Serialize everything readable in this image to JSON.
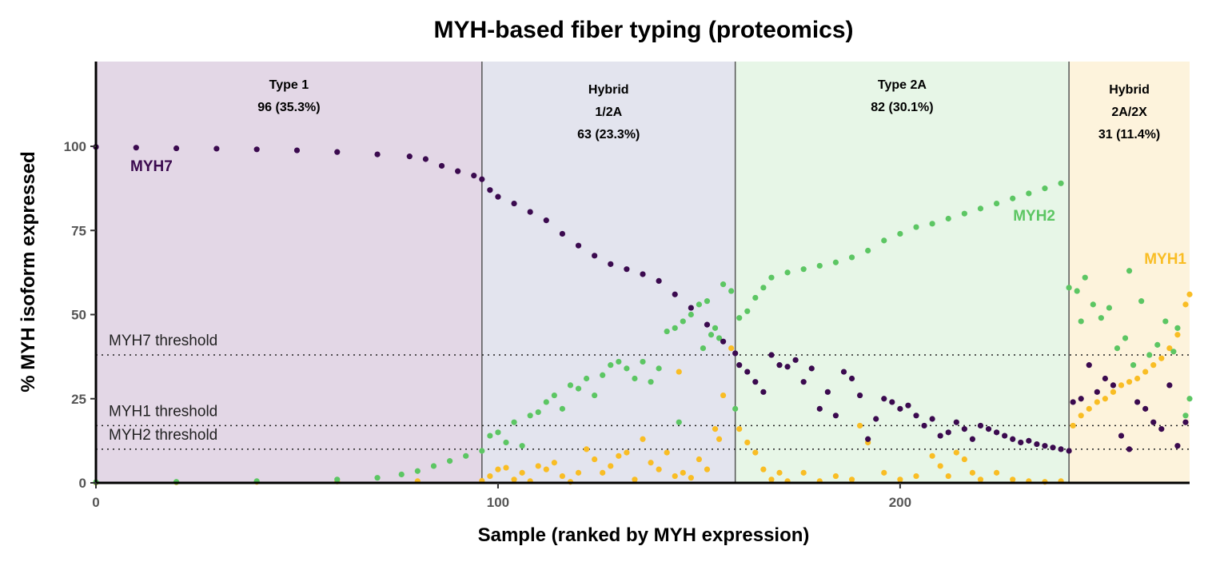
{
  "chart_data": {
    "type": "scatter",
    "title": "MYH-based fiber typing (proteomics)",
    "xlabel": "Sample (ranked by MYH expression)",
    "ylabel": "% MYH isoform expressed",
    "xlim": [
      0,
      272
    ],
    "ylim": [
      0,
      100
    ],
    "x_ticks": [
      "0",
      "100",
      "200"
    ],
    "y_ticks": [
      "0",
      "25",
      "50",
      "75",
      "100"
    ],
    "regions": [
      {
        "lines": [
          "Type 1",
          "96 (35.3%)"
        ],
        "x_start": 0,
        "x_end": 96,
        "color": "#e3d7e6"
      },
      {
        "lines": [
          "Hybrid",
          "1/2A",
          "63 (23.3%)"
        ],
        "x_start": 96,
        "x_end": 159,
        "color": "#e3e4ee"
      },
      {
        "lines": [
          "Type 2A",
          "82 (30.1%)"
        ],
        "x_start": 159,
        "x_end": 242,
        "color": "#e7f6e7"
      },
      {
        "lines": [
          "Hybrid",
          "2A/2X",
          "31 (11.4%)"
        ],
        "x_start": 242,
        "x_end": 272,
        "color": "#fdf3dc"
      }
    ],
    "thresholds": [
      {
        "label": "MYH7 threshold",
        "y": 38
      },
      {
        "label": "MYH1 threshold",
        "y": 17
      },
      {
        "label": "MYH2 threshold",
        "y": 10
      }
    ],
    "series": [
      {
        "name": "MYH7",
        "color": "#3b0a4f"
      },
      {
        "name": "MYH2",
        "color": "#5cc663"
      },
      {
        "name": "MYH1",
        "color": "#f9bd24"
      }
    ],
    "series_points": {
      "MYH7": [
        [
          0,
          99.8
        ],
        [
          10,
          99.6
        ],
        [
          20,
          99.4
        ],
        [
          30,
          99.3
        ],
        [
          40,
          99.1
        ],
        [
          50,
          98.8
        ],
        [
          60,
          98.3
        ],
        [
          70,
          97.6
        ],
        [
          78,
          97.0
        ],
        [
          82,
          96.2
        ],
        [
          86,
          94.2
        ],
        [
          90,
          92.6
        ],
        [
          94,
          91.3
        ],
        [
          96,
          90.2
        ],
        [
          98,
          87.0
        ],
        [
          100,
          85.0
        ],
        [
          104,
          83.0
        ],
        [
          108,
          80.5
        ],
        [
          112,
          78.0
        ],
        [
          116,
          74.0
        ],
        [
          120,
          70.5
        ],
        [
          124,
          67.5
        ],
        [
          128,
          65.0
        ],
        [
          132,
          63.5
        ],
        [
          136,
          62.0
        ],
        [
          140,
          60.0
        ],
        [
          144,
          56.0
        ],
        [
          148,
          52.0
        ],
        [
          152,
          47.0
        ],
        [
          156,
          42.0
        ],
        [
          159,
          38.5
        ],
        [
          160,
          35.0
        ],
        [
          162,
          33.0
        ],
        [
          164,
          30.0
        ],
        [
          166,
          27.0
        ],
        [
          168,
          38.0
        ],
        [
          170,
          35.0
        ],
        [
          172,
          34.5
        ],
        [
          174,
          36.5
        ],
        [
          176,
          30.0
        ],
        [
          178,
          34.0
        ],
        [
          180,
          22.0
        ],
        [
          182,
          27.0
        ],
        [
          184,
          20.0
        ],
        [
          186,
          33.0
        ],
        [
          188,
          31.0
        ],
        [
          190,
          26.0
        ],
        [
          192,
          13.0
        ],
        [
          194,
          19.0
        ],
        [
          196,
          25.0
        ],
        [
          198,
          24.0
        ],
        [
          200,
          22.0
        ],
        [
          202,
          23.0
        ],
        [
          204,
          20.0
        ],
        [
          206,
          17.0
        ],
        [
          208,
          19.0
        ],
        [
          210,
          14.0
        ],
        [
          212,
          15.0
        ],
        [
          214,
          18.0
        ],
        [
          216,
          16.0
        ],
        [
          218,
          13.0
        ],
        [
          220,
          17.0
        ],
        [
          222,
          16.0
        ],
        [
          224,
          15.0
        ],
        [
          226,
          14.0
        ],
        [
          228,
          13.0
        ],
        [
          230,
          12.0
        ],
        [
          232,
          12.5
        ],
        [
          234,
          11.5
        ],
        [
          236,
          11.0
        ],
        [
          238,
          10.5
        ],
        [
          240,
          10.0
        ],
        [
          242,
          9.5
        ],
        [
          243,
          24.0
        ],
        [
          245,
          25.0
        ],
        [
          247,
          35.0
        ],
        [
          249,
          27.0
        ],
        [
          251,
          31.0
        ],
        [
          253,
          29.0
        ],
        [
          255,
          14.0
        ],
        [
          257,
          10.0
        ],
        [
          259,
          24.0
        ],
        [
          261,
          22.0
        ],
        [
          263,
          18.0
        ],
        [
          265,
          16.0
        ],
        [
          267,
          29.0
        ],
        [
          269,
          11.0
        ],
        [
          271,
          18.0
        ]
      ],
      "MYH2": [
        [
          0,
          0.2
        ],
        [
          20,
          0.3
        ],
        [
          40,
          0.5
        ],
        [
          60,
          1.0
        ],
        [
          70,
          1.5
        ],
        [
          76,
          2.5
        ],
        [
          80,
          3.5
        ],
        [
          84,
          5.0
        ],
        [
          88,
          6.5
        ],
        [
          92,
          8.0
        ],
        [
          96,
          9.5
        ],
        [
          98,
          14.0
        ],
        [
          100,
          15.0
        ],
        [
          102,
          12.0
        ],
        [
          104,
          18.0
        ],
        [
          106,
          11.0
        ],
        [
          108,
          20.0
        ],
        [
          110,
          21.0
        ],
        [
          112,
          24.0
        ],
        [
          114,
          26.0
        ],
        [
          116,
          22.0
        ],
        [
          118,
          29.0
        ],
        [
          120,
          28.0
        ],
        [
          122,
          31.0
        ],
        [
          124,
          26.0
        ],
        [
          126,
          32.0
        ],
        [
          128,
          35.0
        ],
        [
          130,
          36.0
        ],
        [
          132,
          34.0
        ],
        [
          134,
          31.0
        ],
        [
          136,
          36.0
        ],
        [
          138,
          30.0
        ],
        [
          140,
          34.0
        ],
        [
          142,
          45.0
        ],
        [
          144,
          46.0
        ],
        [
          145,
          18.0
        ],
        [
          146,
          48.0
        ],
        [
          148,
          50.0
        ],
        [
          150,
          53.0
        ],
        [
          151,
          40.0
        ],
        [
          152,
          54.0
        ],
        [
          153,
          44.0
        ],
        [
          154,
          46.0
        ],
        [
          155,
          43.0
        ],
        [
          156,
          59.0
        ],
        [
          158,
          57.0
        ],
        [
          159,
          22.0
        ],
        [
          160,
          49.0
        ],
        [
          162,
          51.0
        ],
        [
          164,
          55.0
        ],
        [
          166,
          58.0
        ],
        [
          168,
          61.0
        ],
        [
          172,
          62.5
        ],
        [
          176,
          63.5
        ],
        [
          180,
          64.5
        ],
        [
          184,
          65.5
        ],
        [
          188,
          67.0
        ],
        [
          192,
          69.0
        ],
        [
          196,
          72.0
        ],
        [
          200,
          74.0
        ],
        [
          204,
          76.0
        ],
        [
          208,
          77.0
        ],
        [
          212,
          78.5
        ],
        [
          216,
          80.0
        ],
        [
          220,
          81.5
        ],
        [
          224,
          83.0
        ],
        [
          228,
          84.5
        ],
        [
          232,
          86.0
        ],
        [
          236,
          87.5
        ],
        [
          240,
          89.0
        ],
        [
          242,
          58.0
        ],
        [
          244,
          57.0
        ],
        [
          245,
          48.0
        ],
        [
          246,
          61.0
        ],
        [
          248,
          53.0
        ],
        [
          250,
          49.0
        ],
        [
          252,
          52.0
        ],
        [
          254,
          40.0
        ],
        [
          256,
          43.0
        ],
        [
          257,
          63.0
        ],
        [
          258,
          35.0
        ],
        [
          260,
          54.0
        ],
        [
          262,
          38.0
        ],
        [
          264,
          41.0
        ],
        [
          266,
          48.0
        ],
        [
          268,
          39.0
        ],
        [
          269,
          46.0
        ],
        [
          271,
          20.0
        ],
        [
          272,
          25.0
        ]
      ],
      "MYH1": [
        [
          0,
          0.1
        ],
        [
          20,
          0.2
        ],
        [
          40,
          0.3
        ],
        [
          60,
          0.4
        ],
        [
          80,
          0.5
        ],
        [
          96,
          0.6
        ],
        [
          98,
          2.0
        ],
        [
          100,
          4.0
        ],
        [
          102,
          4.5
        ],
        [
          104,
          1.0
        ],
        [
          106,
          3.0
        ],
        [
          108,
          0.5
        ],
        [
          110,
          5.0
        ],
        [
          112,
          4.0
        ],
        [
          114,
          6.0
        ],
        [
          116,
          2.0
        ],
        [
          118,
          0.3
        ],
        [
          120,
          3.0
        ],
        [
          122,
          10.0
        ],
        [
          124,
          7.0
        ],
        [
          126,
          3.0
        ],
        [
          128,
          5.0
        ],
        [
          130,
          8.0
        ],
        [
          132,
          9.0
        ],
        [
          134,
          1.0
        ],
        [
          136,
          13.0
        ],
        [
          138,
          6.0
        ],
        [
          140,
          4.0
        ],
        [
          142,
          9.0
        ],
        [
          144,
          2.0
        ],
        [
          145,
          33.0
        ],
        [
          146,
          3.0
        ],
        [
          148,
          1.5
        ],
        [
          150,
          7.0
        ],
        [
          152,
          4.0
        ],
        [
          154,
          16.0
        ],
        [
          155,
          13.0
        ],
        [
          156,
          26.0
        ],
        [
          158,
          40.0
        ],
        [
          160,
          16.0
        ],
        [
          162,
          12.0
        ],
        [
          164,
          9.0
        ],
        [
          166,
          4.0
        ],
        [
          168,
          1.0
        ],
        [
          170,
          3.0
        ],
        [
          172,
          0.5
        ],
        [
          176,
          3.0
        ],
        [
          180,
          0.5
        ],
        [
          184,
          2.0
        ],
        [
          188,
          1.0
        ],
        [
          190,
          17.0
        ],
        [
          192,
          12.0
        ],
        [
          196,
          3.0
        ],
        [
          200,
          1.0
        ],
        [
          204,
          2.0
        ],
        [
          208,
          8.0
        ],
        [
          210,
          5.0
        ],
        [
          212,
          2.0
        ],
        [
          214,
          9.0
        ],
        [
          216,
          7.0
        ],
        [
          218,
          3.0
        ],
        [
          220,
          1.0
        ],
        [
          224,
          3.0
        ],
        [
          228,
          1.0
        ],
        [
          232,
          0.5
        ],
        [
          236,
          0.3
        ],
        [
          240,
          0.5
        ],
        [
          243,
          17.0
        ],
        [
          245,
          20.0
        ],
        [
          247,
          22.0
        ],
        [
          249,
          24.0
        ],
        [
          251,
          25.0
        ],
        [
          253,
          27.0
        ],
        [
          255,
          29.0
        ],
        [
          257,
          30.0
        ],
        [
          259,
          31.0
        ],
        [
          261,
          33.0
        ],
        [
          263,
          35.0
        ],
        [
          265,
          37.0
        ],
        [
          267,
          40.0
        ],
        [
          269,
          44.0
        ],
        [
          271,
          53.0
        ],
        [
          272,
          56.0
        ]
      ]
    }
  }
}
